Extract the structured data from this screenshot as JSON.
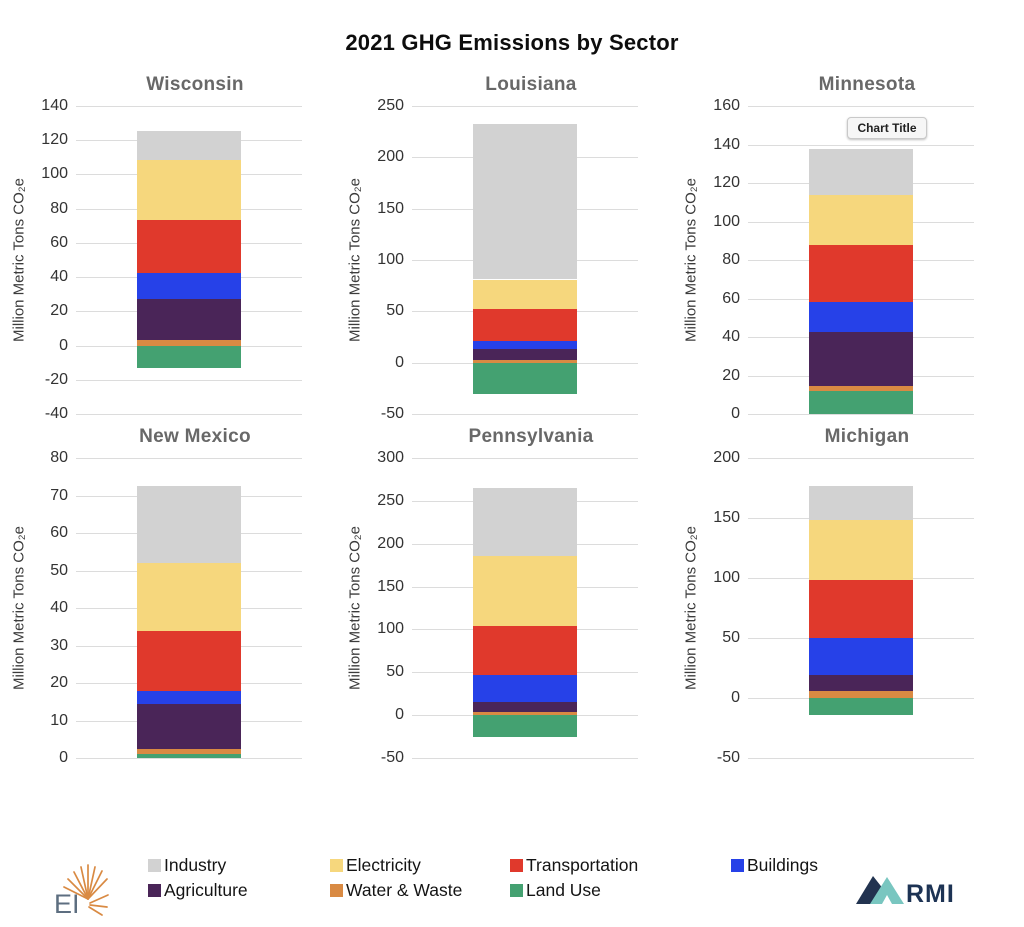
{
  "page_title": "2021 GHG Emissions by Sector",
  "ylabel": "Million Metric Tons CO₂e",
  "tooltip_text": "Chart Title",
  "logos": {
    "left_text": "EI",
    "right_text": "RMI"
  },
  "colors": {
    "Industry": "#d2d2d2",
    "Electricity": "#f6d77d",
    "Transportation": "#e0392c",
    "Buildings": "#2641e8",
    "Agriculture": "#4a2558",
    "Water & Waste": "#d98a43",
    "Land Use": "#44a171"
  },
  "stack_order": [
    "Land Use",
    "Water & Waste",
    "Agriculture",
    "Buildings",
    "Transportation",
    "Electricity",
    "Industry"
  ],
  "legend": {
    "row1": [
      "Industry",
      "Electricity",
      "Transportation",
      "Buildings"
    ],
    "row2": [
      "Agriculture",
      "Water & Waste",
      "Land Use"
    ]
  },
  "chart_data": [
    {
      "type": "bar",
      "state": "Wisconsin",
      "ylim": [
        -40,
        140
      ],
      "yticks": [
        140,
        120,
        100,
        80,
        60,
        40,
        20,
        0,
        -20,
        -40
      ],
      "values": {
        "Industry": 17,
        "Electricity": 35,
        "Transportation": 31,
        "Buildings": 15.5,
        "Agriculture": 24,
        "Water & Waste": 3,
        "Land Use": -13
      }
    },
    {
      "type": "bar",
      "state": "Louisiana",
      "ylim": [
        -50,
        250
      ],
      "yticks": [
        250,
        200,
        150,
        100,
        50,
        0,
        -50
      ],
      "values": {
        "Industry": 151,
        "Electricity": 29,
        "Transportation": 31,
        "Buildings": 8,
        "Agriculture": 10,
        "Water & Waste": 3,
        "Land Use": -31
      }
    },
    {
      "type": "bar",
      "state": "Minnesota",
      "ylim": [
        0,
        160
      ],
      "yticks": [
        160,
        140,
        120,
        100,
        80,
        60,
        40,
        20,
        0
      ],
      "has_tooltip": true,
      "values": {
        "Industry": 23.5,
        "Electricity": 26,
        "Transportation": 30,
        "Buildings": 15.5,
        "Agriculture": 28,
        "Water & Waste": 2.5,
        "Land Use": 12
      }
    },
    {
      "type": "bar",
      "state": "New Mexico",
      "ylim": [
        0,
        80
      ],
      "yticks": [
        80,
        70,
        60,
        50,
        40,
        30,
        20,
        10,
        0
      ],
      "values": {
        "Industry": 20.5,
        "Electricity": 18,
        "Transportation": 16,
        "Buildings": 3.5,
        "Agriculture": 12,
        "Water & Waste": 1.5,
        "Land Use": 1
      }
    },
    {
      "type": "bar",
      "state": "Pennsylvania",
      "ylim": [
        -50,
        300
      ],
      "yticks": [
        300,
        250,
        200,
        150,
        100,
        50,
        0,
        -50
      ],
      "values": {
        "Industry": 79,
        "Electricity": 82,
        "Transportation": 57,
        "Buildings": 32,
        "Agriculture": 11,
        "Water & Waste": 4,
        "Land Use": -26
      }
    },
    {
      "type": "bar",
      "state": "Michigan",
      "ylim": [
        -50,
        200
      ],
      "yticks": [
        200,
        150,
        100,
        50,
        0,
        -50
      ],
      "values": {
        "Industry": 29,
        "Electricity": 50,
        "Transportation": 48,
        "Buildings": 31,
        "Agriculture": 13,
        "Water & Waste": 6,
        "Land Use": -14
      }
    }
  ]
}
